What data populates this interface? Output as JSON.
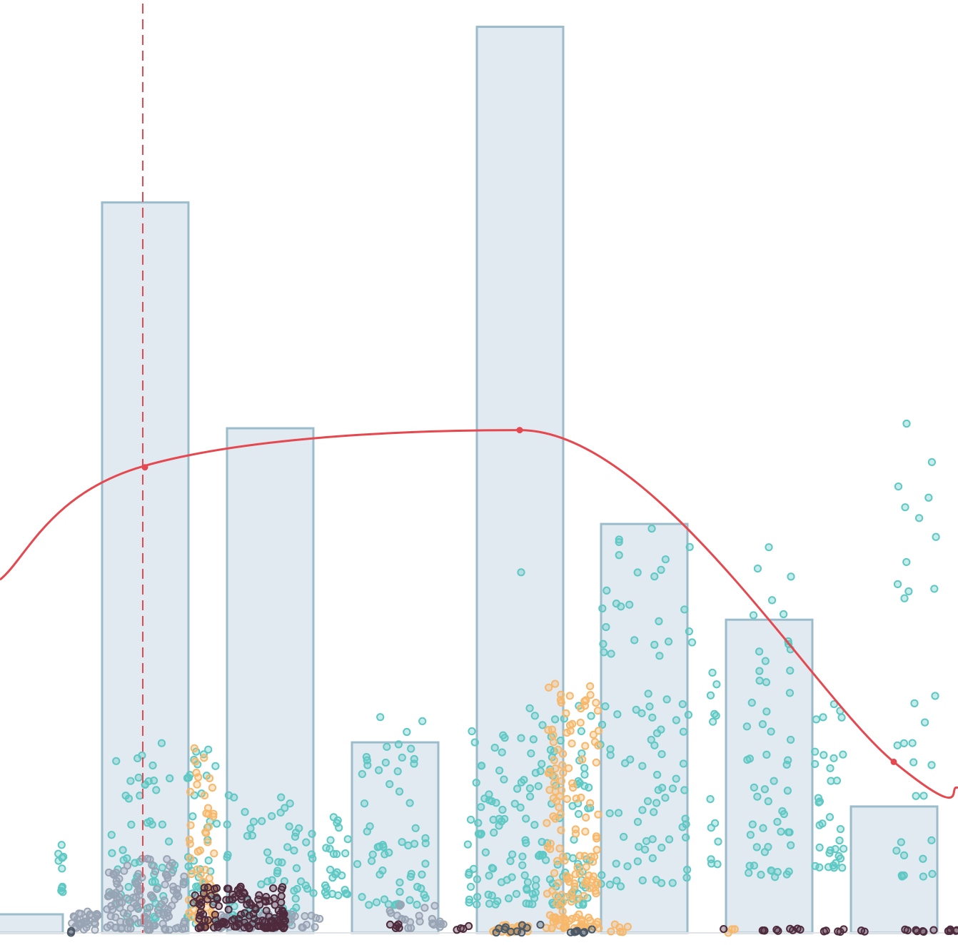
{
  "chart_data": {
    "type": "bar",
    "title": "",
    "xlabel": "",
    "ylabel": "",
    "xlim": [
      0,
      1342
    ],
    "ylim": [
      0,
      1000
    ],
    "grid": false,
    "legend": "none",
    "colors": {
      "bar_fill": "#e1e9f1",
      "bar_edge": "#9bbccb",
      "curve": "#e5484f",
      "reference_line": "#e5484f",
      "teal": "#5ec8c4",
      "orange": "#f7b86b",
      "gray": "#98a4b4",
      "maroon": "#4e2a3c",
      "slate": "#4a5868"
    },
    "bars": [
      {
        "x0": -50,
        "x1": 88,
        "value": 20
      },
      {
        "x0": 143,
        "x1": 264,
        "value": 786
      },
      {
        "x0": 318,
        "x1": 439,
        "value": 543
      },
      {
        "x0": 493,
        "x1": 614,
        "value": 205
      },
      {
        "x0": 668,
        "x1": 789,
        "value": 975
      },
      {
        "x0": 842,
        "x1": 963,
        "value": 440
      },
      {
        "x0": 1017,
        "x1": 1138,
        "value": 337
      },
      {
        "x0": 1192,
        "x1": 1313,
        "value": 136
      }
    ],
    "curve": {
      "points": [
        [
          0,
          380
        ],
        [
          200,
          502
        ],
        [
          728,
          541
        ],
        [
          1252,
          184
        ],
        [
          1342,
          156
        ]
      ],
      "markers": [
        [
          203,
          501
        ],
        [
          728,
          541
        ],
        [
          1252,
          184
        ]
      ]
    },
    "reference_line": {
      "x": 200
    },
    "scatter_groups": [
      {
        "name": "",
        "color": "teal",
        "ranges": [
          [
            80,
            90,
            40,
            95,
            10
          ],
          [
            155,
            245,
            10,
            205,
            60
          ],
          [
            258,
            305,
            10,
            200,
            45
          ],
          [
            315,
            440,
            10,
            150,
            70
          ],
          [
            455,
            490,
            40,
            130,
            25
          ],
          [
            500,
            600,
            30,
            240,
            60
          ],
          [
            655,
            830,
            30,
            245,
            160
          ],
          [
            840,
            970,
            50,
            440,
            90
          ],
          [
            995,
            1010,
            70,
            280,
            12
          ],
          [
            1045,
            1110,
            60,
            415,
            55
          ],
          [
            1140,
            1185,
            70,
            255,
            35
          ],
          [
            1255,
            1315,
            60,
            520,
            28
          ]
        ]
      },
      {
        "name": "",
        "color": "orange",
        "ranges": [
          [
            262,
            300,
            8,
            200,
            60
          ],
          [
            690,
            740,
            0,
            10,
            25
          ],
          [
            765,
            840,
            5,
            270,
            160
          ],
          [
            850,
            880,
            0,
            10,
            6
          ],
          [
            1020,
            1030,
            0,
            5,
            3
          ]
        ]
      },
      {
        "name": "",
        "color": "gray",
        "ranges": [
          [
            100,
            140,
            3,
            25,
            30
          ],
          [
            150,
            260,
            3,
            80,
            120
          ],
          [
            300,
            450,
            5,
            20,
            45
          ],
          [
            545,
            625,
            5,
            32,
            22
          ]
        ]
      },
      {
        "name": "",
        "color": "maroon",
        "ranges": [
          [
            270,
            400,
            5,
            50,
            130
          ],
          [
            545,
            560,
            5,
            10,
            5
          ],
          [
            620,
            665,
            3,
            8,
            4
          ],
          [
            1010,
            1130,
            2,
            5,
            10
          ],
          [
            1150,
            1220,
            1,
            4,
            7
          ],
          [
            1265,
            1342,
            1,
            4,
            12
          ]
        ]
      },
      {
        "name": "",
        "color": "slate",
        "ranges": [
          [
            96,
            100,
            0,
            2,
            2
          ],
          [
            690,
            760,
            0,
            10,
            10
          ],
          [
            785,
            835,
            0,
            4,
            7
          ]
        ]
      }
    ],
    "scatter_outliers": [
      {
        "x": 1270,
        "value": 548,
        "color": "teal"
      },
      {
        "x": 1268,
        "value": 458,
        "color": "teal"
      },
      {
        "x": 1267,
        "value": 360,
        "color": "teal"
      },
      {
        "x": 1077,
        "value": 415,
        "color": "teal"
      },
      {
        "x": 913,
        "value": 435,
        "color": "teal"
      },
      {
        "x": 730,
        "value": 388,
        "color": "teal"
      },
      {
        "x": 1310,
        "value": 255,
        "color": "teal"
      },
      {
        "x": 998,
        "value": 280,
        "color": "teal"
      }
    ]
  }
}
